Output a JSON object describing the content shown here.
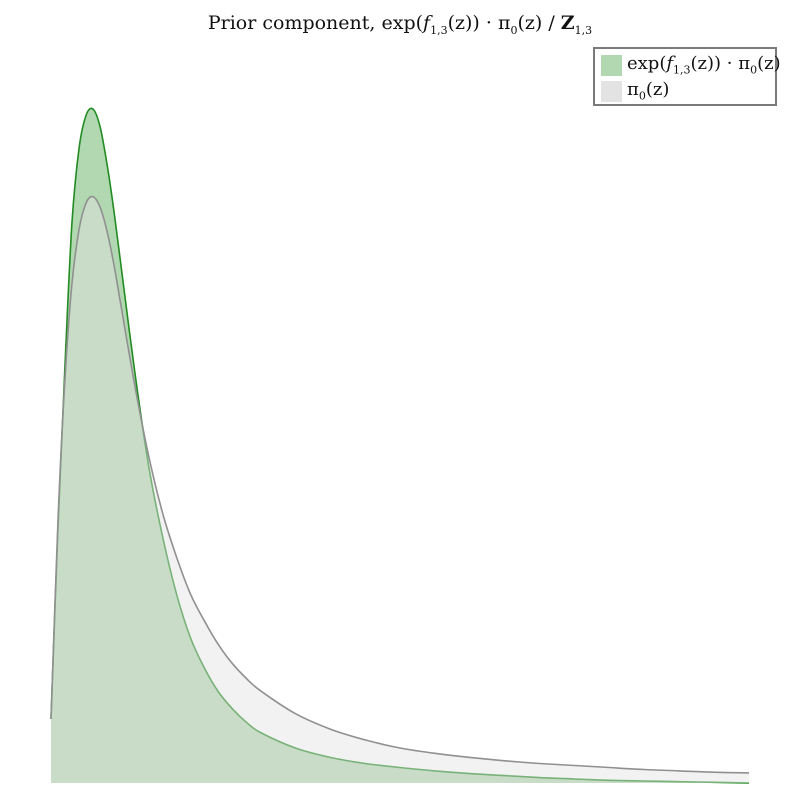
{
  "colors": {
    "green_fill": "#b2d8b2",
    "green_line": "#228b22",
    "gray_fill": "#e3e3e3",
    "gray_line": "#909090"
  },
  "chart_data": {
    "type": "area",
    "title": {
      "prefix": "Prior component, exp(",
      "f": "f",
      "f_sub": "1,3",
      "mid": "(z)) · π",
      "pi_sub": "0",
      "after_pi": "(z) / ",
      "Z": "Z",
      "Z_sub": "1,3"
    },
    "legend_position": "top-right",
    "grid": false,
    "axes_visible": false,
    "xlim": [
      0,
      10
    ],
    "ylim": [
      0,
      1
    ],
    "legend": [
      {
        "prefix": "exp(",
        "f": "f",
        "f_sub": "1,3",
        "mid": "(z)) · π",
        "pi_sub": "0",
        "suffix": "(z)"
      },
      {
        "pi": "π",
        "pi_sub": "0",
        "suffix": "(z)"
      }
    ],
    "series": [
      {
        "name": "exp(f_1,3(z)) · π_0(z)",
        "x": [
          0.0,
          0.1,
          0.2,
          0.3,
          0.4,
          0.5,
          0.6,
          0.7,
          0.8,
          0.9,
          1.0,
          1.2,
          1.4,
          1.6,
          1.8,
          2.0,
          2.2,
          2.4,
          2.6,
          2.8,
          3.0,
          3.5,
          4.0,
          4.5,
          5.0,
          5.5,
          6.0,
          6.5,
          7.0,
          7.5,
          8.0,
          8.5,
          9.0,
          9.5,
          10.0
        ],
        "values": [
          0.095,
          0.38,
          0.62,
          0.83,
          0.94,
          0.99,
          1.0,
          0.975,
          0.92,
          0.85,
          0.77,
          0.61,
          0.47,
          0.365,
          0.28,
          0.215,
          0.17,
          0.135,
          0.11,
          0.09,
          0.075,
          0.052,
          0.038,
          0.029,
          0.023,
          0.018,
          0.014,
          0.011,
          0.008,
          0.006,
          0.004,
          0.003,
          0.002,
          0.001,
          0.0
        ]
      },
      {
        "name": "π_0(z)",
        "x": [
          0.0,
          0.1,
          0.2,
          0.3,
          0.4,
          0.5,
          0.6,
          0.7,
          0.8,
          0.9,
          1.0,
          1.2,
          1.4,
          1.6,
          1.8,
          2.0,
          2.2,
          2.4,
          2.6,
          2.8,
          3.0,
          3.5,
          4.0,
          4.5,
          5.0,
          5.5,
          6.0,
          6.5,
          7.0,
          7.5,
          8.0,
          8.5,
          9.0,
          9.5,
          10.0
        ],
        "values": [
          0.095,
          0.39,
          0.6,
          0.74,
          0.82,
          0.86,
          0.87,
          0.855,
          0.82,
          0.77,
          0.71,
          0.59,
          0.485,
          0.4,
          0.335,
          0.28,
          0.24,
          0.205,
          0.177,
          0.155,
          0.137,
          0.103,
          0.08,
          0.064,
          0.052,
          0.044,
          0.038,
          0.033,
          0.029,
          0.026,
          0.023,
          0.02,
          0.018,
          0.016,
          0.015
        ]
      }
    ]
  }
}
